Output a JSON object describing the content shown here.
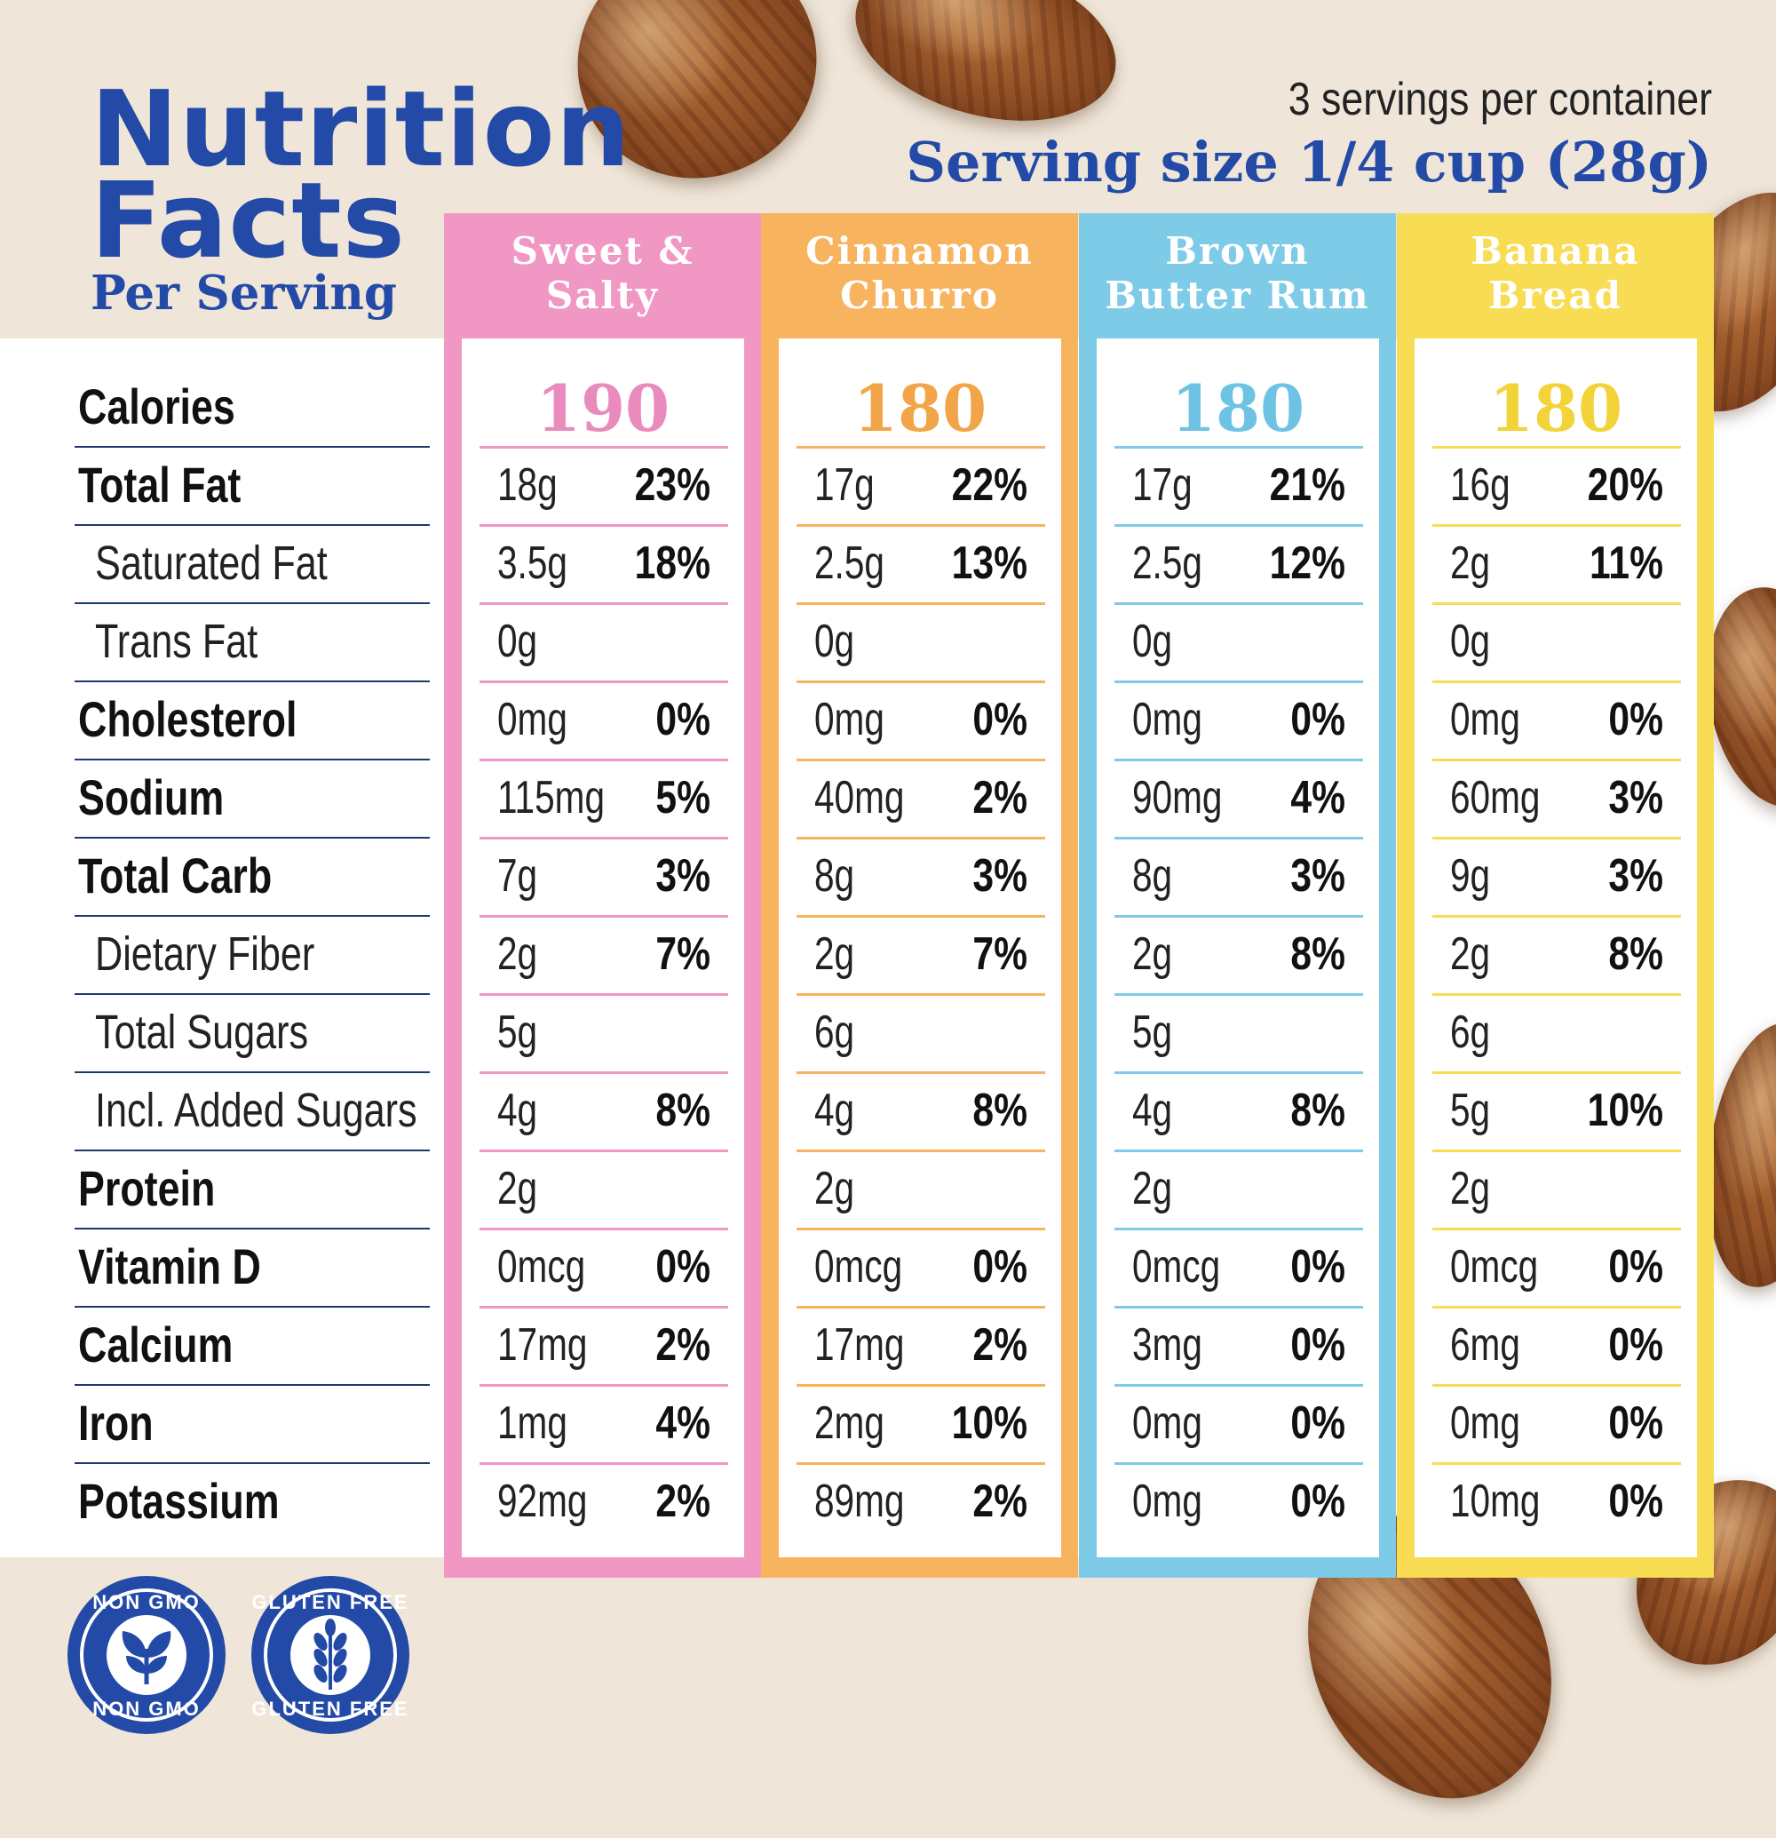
{
  "header": {
    "title_line1": "Nutrition",
    "title_line2": "Facts",
    "subtitle": "Per Serving",
    "servings_per_container": "3 servings per container",
    "serving_size": "Serving size 1/4 cup (28g)"
  },
  "colors": {
    "title_blue": "#234aa6",
    "pink": "#f097c4",
    "orange": "#f8b35f",
    "blue": "#7ecbe8",
    "yellow": "#f7dc54"
  },
  "rows": [
    {
      "label": "Calories",
      "style": "bold"
    },
    {
      "label": "Total Fat",
      "style": "bold"
    },
    {
      "label": "Saturated Fat",
      "style": "sub"
    },
    {
      "label": "Trans Fat",
      "style": "sub"
    },
    {
      "label": "Cholesterol",
      "style": "bold"
    },
    {
      "label": "Sodium",
      "style": "bold"
    },
    {
      "label": "Total Carb",
      "style": "bold"
    },
    {
      "label": "Dietary Fiber",
      "style": "sub"
    },
    {
      "label": "Total Sugars",
      "style": "sub"
    },
    {
      "label": "Incl. Added Sugars",
      "style": "sub"
    },
    {
      "label": "Protein",
      "style": "bold"
    },
    {
      "label": "Vitamin D",
      "style": "bold"
    },
    {
      "label": "Calcium",
      "style": "bold"
    },
    {
      "label": "Iron",
      "style": "bold"
    },
    {
      "label": "Potassium",
      "style": "bold"
    }
  ],
  "flavors": [
    {
      "name_line1": "Sweet &",
      "name_line2": "Salty",
      "color": "#f097c4",
      "cal_color": "#e98bbd",
      "calories": "190",
      "values": [
        [
          "18g",
          "23%"
        ],
        [
          "3.5g",
          "18%"
        ],
        [
          "0g",
          ""
        ],
        [
          "0mg",
          "0%"
        ],
        [
          "115mg",
          "5%"
        ],
        [
          "7g",
          "3%"
        ],
        [
          "2g",
          "7%"
        ],
        [
          "5g",
          ""
        ],
        [
          "4g",
          "8%"
        ],
        [
          "2g",
          ""
        ],
        [
          "0mcg",
          "0%"
        ],
        [
          "17mg",
          "2%"
        ],
        [
          "1mg",
          "4%"
        ],
        [
          "92mg",
          "2%"
        ]
      ]
    },
    {
      "name_line1": "Cinnamon",
      "name_line2": "Churro",
      "color": "#f8b35f",
      "cal_color": "#f2a548",
      "calories": "180",
      "values": [
        [
          "17g",
          "22%"
        ],
        [
          "2.5g",
          "13%"
        ],
        [
          "0g",
          ""
        ],
        [
          "0mg",
          "0%"
        ],
        [
          "40mg",
          "2%"
        ],
        [
          "8g",
          "3%"
        ],
        [
          "2g",
          "7%"
        ],
        [
          "6g",
          ""
        ],
        [
          "4g",
          "8%"
        ],
        [
          "2g",
          ""
        ],
        [
          "0mcg",
          "0%"
        ],
        [
          "17mg",
          "2%"
        ],
        [
          "2mg",
          "10%"
        ],
        [
          "89mg",
          "2%"
        ]
      ]
    },
    {
      "name_line1": "Brown",
      "name_line2": "Butter Rum",
      "color": "#7ecbe8",
      "cal_color": "#6ec3e4",
      "calories": "180",
      "values": [
        [
          "17g",
          "21%"
        ],
        [
          "2.5g",
          "12%"
        ],
        [
          "0g",
          ""
        ],
        [
          "0mg",
          "0%"
        ],
        [
          "90mg",
          "4%"
        ],
        [
          "8g",
          "3%"
        ],
        [
          "2g",
          "8%"
        ],
        [
          "5g",
          ""
        ],
        [
          "4g",
          "8%"
        ],
        [
          "2g",
          ""
        ],
        [
          "0mcg",
          "0%"
        ],
        [
          "3mg",
          "0%"
        ],
        [
          "0mg",
          "0%"
        ],
        [
          "0mg",
          "0%"
        ]
      ]
    },
    {
      "name_line1": "Banana",
      "name_line2": "Bread",
      "color": "#f7dc54",
      "cal_color": "#f2d338",
      "calories": "180",
      "values": [
        [
          "16g",
          "20%"
        ],
        [
          "2g",
          "11%"
        ],
        [
          "0g",
          ""
        ],
        [
          "0mg",
          "0%"
        ],
        [
          "60mg",
          "3%"
        ],
        [
          "9g",
          "3%"
        ],
        [
          "2g",
          "8%"
        ],
        [
          "6g",
          ""
        ],
        [
          "5g",
          "10%"
        ],
        [
          "2g",
          ""
        ],
        [
          "0mcg",
          "0%"
        ],
        [
          "6mg",
          "0%"
        ],
        [
          "0mg",
          "0%"
        ],
        [
          "10mg",
          "0%"
        ]
      ]
    }
  ],
  "badges": [
    {
      "top_text": "NON GMO",
      "bottom_text": "NON GMO",
      "icon": "leaf-icon"
    },
    {
      "top_text": "GLUTEN FREE",
      "bottom_text": "GLUTEN FREE",
      "icon": "wheat-icon"
    }
  ]
}
